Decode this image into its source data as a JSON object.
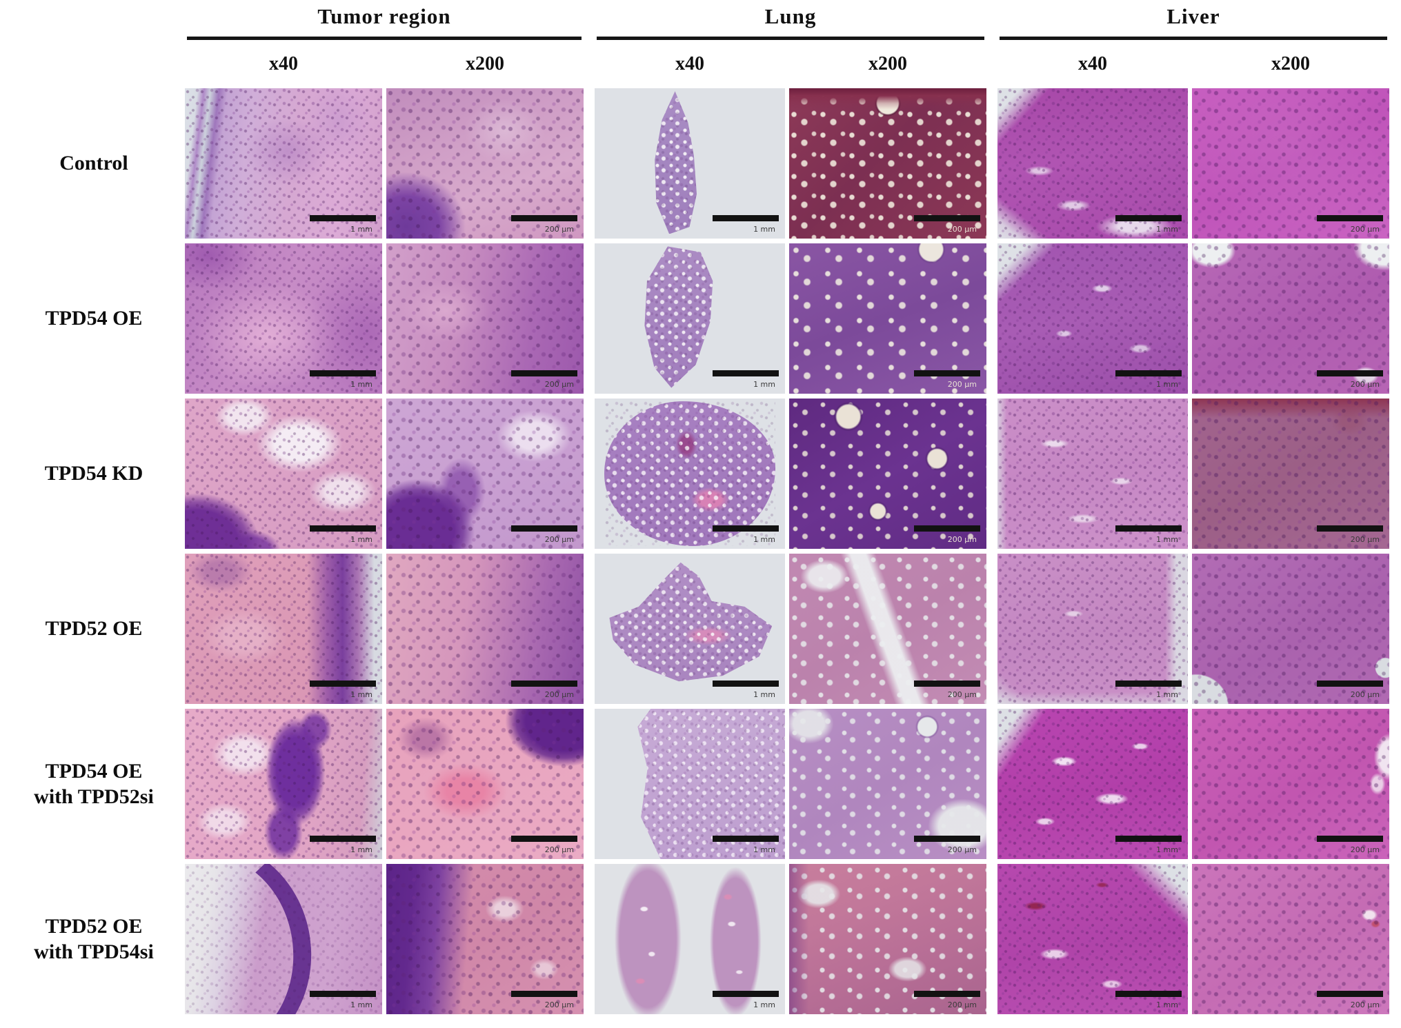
{
  "figure": {
    "groups": [
      {
        "label": "Tumor region",
        "mags": [
          "x40",
          "x200"
        ]
      },
      {
        "label": "Lung",
        "mags": [
          "x40",
          "x200"
        ]
      },
      {
        "label": "Liver",
        "mags": [
          "x40",
          "x200"
        ]
      }
    ],
    "rows": [
      {
        "label": "Control",
        "label2": ""
      },
      {
        "label": "TPD54 OE",
        "label2": ""
      },
      {
        "label": "TPD54 KD",
        "label2": ""
      },
      {
        "label": "TPD52 OE",
        "label2": ""
      },
      {
        "label": "TPD54 OE",
        "label2": "with TPD52si"
      },
      {
        "label": "TPD52 OE",
        "label2": "with TPD54si"
      }
    ],
    "scale_labels": {
      "x40": "1 mm",
      "x200": "200 μm"
    },
    "palette": {
      "background": "#ffffff",
      "header_text": "#111111",
      "underline": "#151515",
      "scale_bar": "#121212",
      "slide_gray": "#dee1e6",
      "he_pink": "#e0a2bc",
      "he_purple": "#8a4fa8",
      "he_magenta": "#b44fb0"
    }
  }
}
